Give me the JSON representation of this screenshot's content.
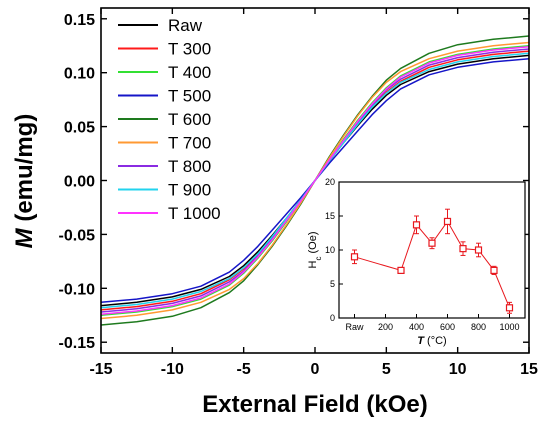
{
  "chart_data": [
    {
      "type": "line",
      "title": "",
      "xlabel": "External Field (kOe)",
      "ylabel_symbol": "M",
      "ylabel_rest": " (emu/mg)",
      "xlim": [
        -15,
        15
      ],
      "ylim": [
        -0.16,
        0.16
      ],
      "xticks": [
        -15,
        -10,
        -5,
        0,
        5,
        10,
        15
      ],
      "xtick_labels": [
        "-15",
        "-10",
        "-5",
        "0",
        "5",
        "10",
        "15"
      ],
      "yticks": [
        -0.15,
        -0.1,
        -0.05,
        0.0,
        0.05,
        0.1,
        0.15
      ],
      "ytick_labels": [
        "-0.15",
        "-0.10",
        "-0.05",
        "0.00",
        "0.05",
        "0.10",
        "0.15"
      ],
      "grid": false,
      "legend_position": "top-left",
      "x": [
        -15,
        -12.5,
        -10,
        -8,
        -6,
        -5,
        -4,
        -3,
        -2,
        -1,
        0,
        1,
        2,
        3,
        4,
        5,
        6,
        8,
        10,
        12.5,
        15
      ],
      "series": [
        {
          "name": "Raw",
          "color": "#000000",
          "values": [
            -0.116,
            -0.113,
            -0.108,
            -0.101,
            -0.089,
            -0.079,
            -0.066,
            -0.051,
            -0.035,
            -0.018,
            0.0,
            0.018,
            0.035,
            0.051,
            0.066,
            0.079,
            0.089,
            0.101,
            0.108,
            0.113,
            0.116
          ]
        },
        {
          "name": "T 300",
          "color": "#ff1a1a",
          "values": [
            -0.12,
            -0.117,
            -0.112,
            -0.105,
            -0.092,
            -0.082,
            -0.069,
            -0.053,
            -0.036,
            -0.019,
            0.0,
            0.019,
            0.036,
            0.053,
            0.069,
            0.082,
            0.092,
            0.105,
            0.112,
            0.117,
            0.12
          ]
        },
        {
          "name": "T 400",
          "color": "#33e033",
          "values": [
            -0.125,
            -0.122,
            -0.117,
            -0.11,
            -0.097,
            -0.086,
            -0.072,
            -0.056,
            -0.038,
            -0.019,
            0.0,
            0.019,
            0.038,
            0.056,
            0.072,
            0.086,
            0.097,
            0.11,
            0.117,
            0.122,
            0.125
          ]
        },
        {
          "name": "T 500",
          "color": "#1515c8",
          "values": [
            -0.113,
            -0.11,
            -0.105,
            -0.098,
            -0.085,
            -0.074,
            -0.061,
            -0.046,
            -0.031,
            -0.016,
            0.0,
            0.016,
            0.031,
            0.046,
            0.061,
            0.074,
            0.085,
            0.098,
            0.105,
            0.11,
            0.113
          ]
        },
        {
          "name": "T 600",
          "color": "#1e7a1e",
          "values": [
            -0.134,
            -0.131,
            -0.126,
            -0.118,
            -0.104,
            -0.093,
            -0.078,
            -0.061,
            -0.042,
            -0.022,
            0.0,
            0.022,
            0.042,
            0.061,
            0.078,
            0.093,
            0.104,
            0.118,
            0.126,
            0.131,
            0.134
          ]
        },
        {
          "name": "T 700",
          "color": "#ff9933",
          "values": [
            -0.128,
            -0.125,
            -0.12,
            -0.113,
            -0.101,
            -0.091,
            -0.077,
            -0.06,
            -0.041,
            -0.021,
            0.0,
            0.021,
            0.041,
            0.06,
            0.077,
            0.091,
            0.101,
            0.113,
            0.12,
            0.125,
            0.128
          ]
        },
        {
          "name": "T 800",
          "color": "#8a2be2",
          "values": [
            -0.122,
            -0.119,
            -0.114,
            -0.107,
            -0.094,
            -0.084,
            -0.07,
            -0.054,
            -0.037,
            -0.019,
            0.0,
            0.019,
            0.037,
            0.054,
            0.07,
            0.084,
            0.094,
            0.107,
            0.114,
            0.119,
            0.122
          ]
        },
        {
          "name": "T 900",
          "color": "#22d3ee",
          "values": [
            -0.118,
            -0.115,
            -0.11,
            -0.103,
            -0.091,
            -0.081,
            -0.068,
            -0.052,
            -0.035,
            -0.018,
            0.0,
            0.018,
            0.035,
            0.052,
            0.068,
            0.081,
            0.091,
            0.103,
            0.11,
            0.115,
            0.118
          ]
        },
        {
          "name": "T 1000",
          "color": "#ff33ff",
          "values": [
            -0.124,
            -0.121,
            -0.116,
            -0.109,
            -0.096,
            -0.085,
            -0.071,
            -0.055,
            -0.037,
            -0.019,
            0.0,
            0.019,
            0.037,
            0.055,
            0.071,
            0.085,
            0.096,
            0.109,
            0.116,
            0.121,
            0.124
          ]
        }
      ]
    },
    {
      "type": "line",
      "title": "",
      "inset": true,
      "ylabel_main": "H",
      "ylabel_sub": "c",
      "ylabel_rest": " (Oe)",
      "xlabel_symbol": "T",
      "xlabel_rest": " (°C)",
      "xlim": [
        -100,
        1100
      ],
      "ylim": [
        0,
        20
      ],
      "xticks": [
        0,
        200,
        400,
        600,
        800,
        1000
      ],
      "xtick_labels": [
        "Raw",
        "200",
        "400",
        "600",
        "800",
        "1000"
      ],
      "yticks": [
        0,
        5,
        10,
        15,
        20
      ],
      "ytick_labels": [
        "0",
        "5",
        "10",
        "15",
        "20"
      ],
      "color": "#e8181e",
      "marker": "open-square",
      "x": [
        0,
        300,
        400,
        500,
        600,
        700,
        800,
        900,
        1000
      ],
      "y": [
        9.0,
        7.0,
        13.7,
        11.0,
        14.2,
        10.2,
        10.0,
        7.0,
        1.5
      ],
      "yerr": [
        1.0,
        0.4,
        1.3,
        0.8,
        1.8,
        1.0,
        1.0,
        0.6,
        0.8
      ]
    }
  ]
}
